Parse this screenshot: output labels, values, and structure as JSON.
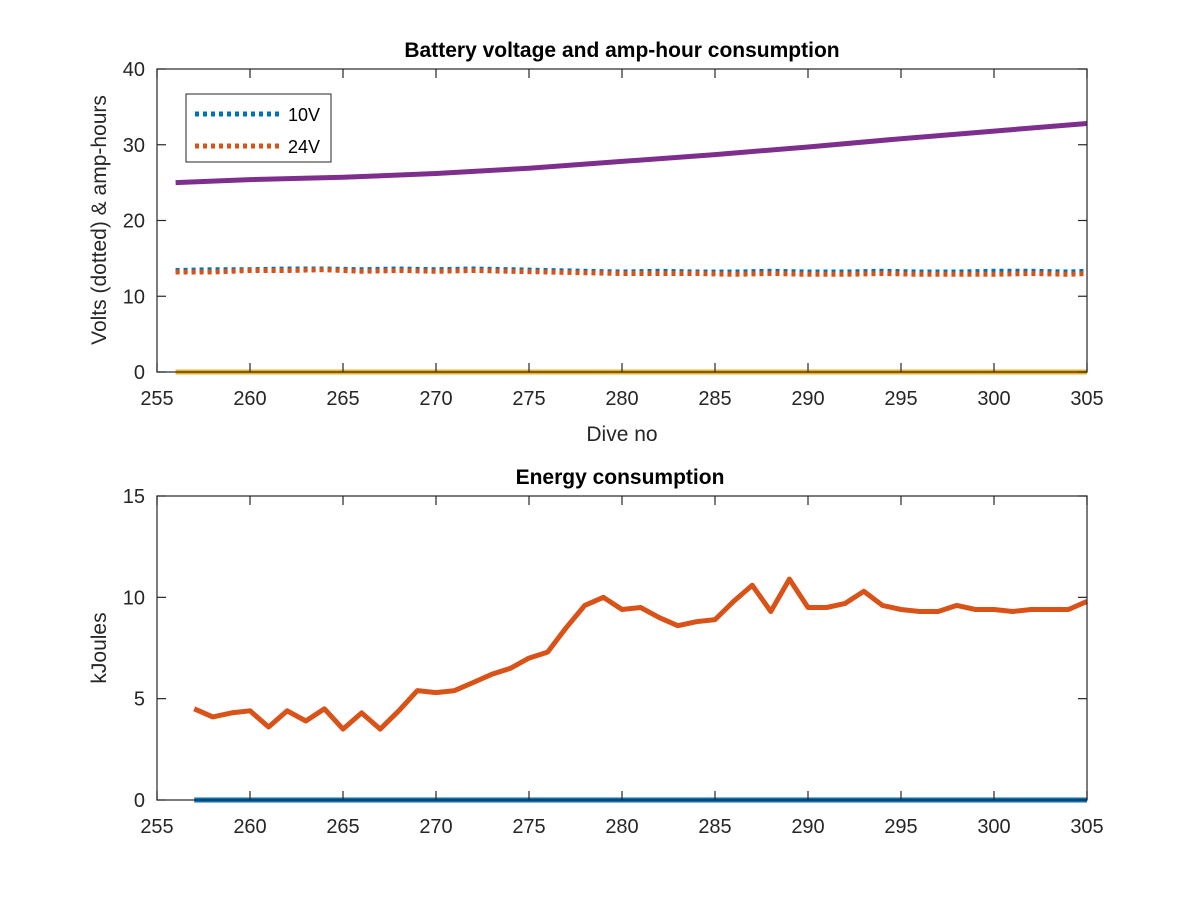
{
  "chart_data": [
    {
      "type": "line",
      "title": "Battery voltage and amp-hour consumption",
      "xlabel": "Dive no",
      "ylabel": "Volts (dotted) & amp-hours",
      "xlim": [
        255,
        305
      ],
      "ylim": [
        0,
        40
      ],
      "xticks": [
        255,
        260,
        265,
        270,
        275,
        280,
        285,
        290,
        295,
        300,
        305
      ],
      "yticks": [
        0,
        10,
        20,
        30,
        40
      ],
      "grid": false,
      "legend": {
        "placement": "top-left",
        "entries": [
          "10V",
          "24V"
        ]
      },
      "series": [
        {
          "name": "10V",
          "style": "dotted",
          "color": "#0072BD",
          "x": [
            256,
            258,
            260,
            262,
            264,
            266,
            268,
            270,
            272,
            274,
            276,
            278,
            280,
            282,
            284,
            286,
            288,
            290,
            292,
            294,
            296,
            298,
            300,
            302,
            304,
            305
          ],
          "y": [
            13.4,
            13.5,
            13.5,
            13.6,
            13.6,
            13.5,
            13.6,
            13.5,
            13.6,
            13.5,
            13.4,
            13.3,
            13.2,
            13.3,
            13.2,
            13.2,
            13.3,
            13.2,
            13.2,
            13.3,
            13.2,
            13.2,
            13.3,
            13.3,
            13.2,
            13.3
          ]
        },
        {
          "name": "24V",
          "style": "dotted",
          "color": "#D95319",
          "x": [
            256,
            258,
            260,
            262,
            264,
            266,
            268,
            270,
            272,
            274,
            276,
            278,
            280,
            282,
            284,
            286,
            288,
            290,
            292,
            294,
            296,
            298,
            300,
            302,
            304,
            305
          ],
          "y": [
            13.2,
            13.2,
            13.4,
            13.4,
            13.5,
            13.3,
            13.4,
            13.3,
            13.4,
            13.3,
            13.2,
            13.1,
            13.0,
            13.0,
            13.0,
            12.9,
            13.0,
            12.9,
            12.9,
            13.0,
            12.9,
            12.9,
            12.9,
            13.0,
            12.9,
            13.0
          ]
        },
        {
          "style": "solid",
          "color": "#EDB120",
          "x": [
            256,
            305
          ],
          "y": [
            0,
            0
          ]
        },
        {
          "style": "solid",
          "color": "#7E2F8E",
          "x": [
            256,
            260,
            265,
            270,
            275,
            280,
            285,
            290,
            295,
            300,
            305
          ],
          "y": [
            25.0,
            25.4,
            25.7,
            26.2,
            26.9,
            27.8,
            28.7,
            29.7,
            30.8,
            31.8,
            32.8
          ]
        }
      ]
    },
    {
      "type": "line",
      "title": "Energy consumption",
      "xlabel": "",
      "ylabel": "kJoules",
      "xlim": [
        255,
        305
      ],
      "ylim": [
        0,
        15
      ],
      "xticks": [
        255,
        260,
        265,
        270,
        275,
        280,
        285,
        290,
        295,
        300,
        305
      ],
      "yticks": [
        0,
        5,
        10,
        15
      ],
      "grid": false,
      "series": [
        {
          "style": "solid",
          "color": "#0072BD",
          "x": [
            257,
            305
          ],
          "y": [
            0,
            0
          ]
        },
        {
          "style": "solid",
          "color": "#D95319",
          "x": [
            257,
            258,
            259,
            260,
            261,
            262,
            263,
            264,
            265,
            266,
            267,
            268,
            269,
            270,
            271,
            272,
            273,
            274,
            275,
            276,
            277,
            278,
            279,
            280,
            281,
            282,
            283,
            284,
            285,
            286,
            287,
            288,
            289,
            290,
            291,
            292,
            293,
            294,
            295,
            296,
            297,
            298,
            299,
            300,
            301,
            302,
            303,
            304,
            305
          ],
          "y": [
            4.5,
            4.1,
            4.3,
            4.4,
            3.6,
            4.4,
            3.9,
            4.5,
            3.5,
            4.3,
            3.5,
            4.4,
            5.4,
            5.3,
            5.4,
            5.8,
            6.2,
            6.5,
            7.0,
            7.3,
            8.5,
            9.6,
            10.0,
            9.4,
            9.5,
            9.0,
            8.6,
            8.8,
            8.9,
            9.8,
            10.6,
            9.3,
            10.9,
            9.5,
            9.5,
            9.7,
            10.3,
            9.6,
            9.4,
            9.3,
            9.3,
            9.6,
            9.4,
            9.4,
            9.3,
            9.4,
            9.4,
            9.4,
            9.8
          ]
        }
      ]
    }
  ]
}
